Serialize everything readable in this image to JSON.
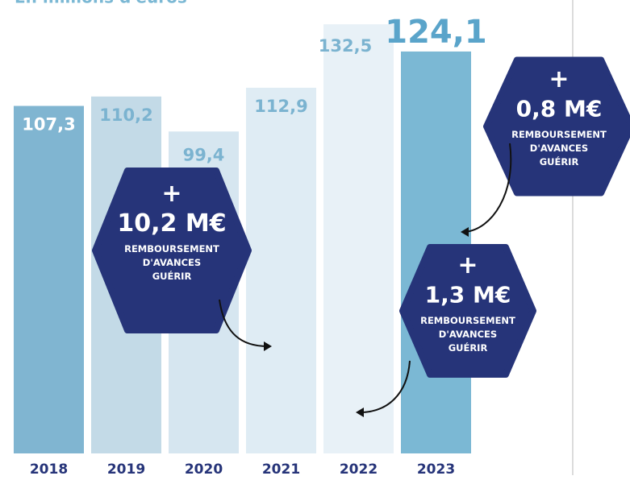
{
  "chart_data": {
    "type": "bar",
    "title": "En millions d'euros",
    "categories": [
      "2018",
      "2019",
      "2020",
      "2021",
      "2022",
      "2023"
    ],
    "values": [
      107.3,
      110.2,
      99.4,
      112.9,
      132.5,
      124.1
    ],
    "value_labels": [
      "107,3",
      "110,2",
      "99,4",
      "112,9",
      "132,5",
      "124,1"
    ],
    "colors": [
      "#80b5d1",
      "#c3dae7",
      "#d6e6f0",
      "#dfecf4",
      "#e8f1f7",
      "#7bb8d4"
    ],
    "ylim": [
      0,
      140
    ],
    "annotations": [
      {
        "plus": "+",
        "amount": "10,2 M€",
        "lines": [
          "REMBOURSEMENT",
          "D'AVANCES",
          "GUÉRIR"
        ]
      },
      {
        "plus": "+",
        "amount": "0,8 M€",
        "lines": [
          "REMBOURSEMENT",
          "D'AVANCES",
          "GUÉRIR"
        ]
      },
      {
        "plus": "+",
        "amount": "1,3 M€",
        "lines": [
          "REMBOURSEMENT",
          "D'AVANCES",
          "GUÉRIR"
        ]
      }
    ]
  }
}
